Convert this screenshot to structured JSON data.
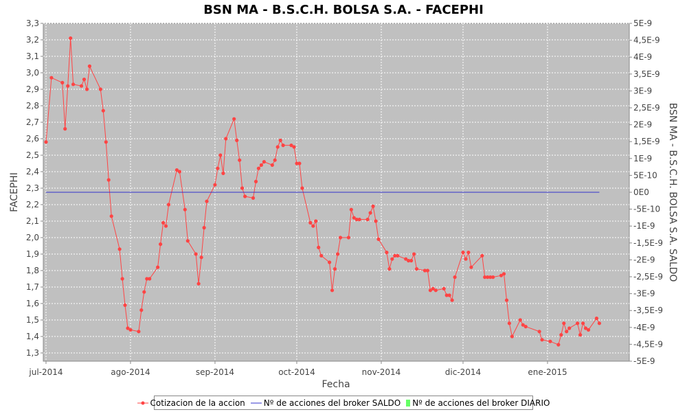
{
  "chart_data": {
    "type": "line",
    "title": "BSN MA - B.S.C.H. BOLSA S.A. - FACEPHI",
    "xlabel": "Fecha",
    "ylabel": "FACEPHI",
    "y2label": "BSN MA - B.S.C.H. BOLSA S.A. SALDO",
    "x_range": [
      "2014-06-30",
      "2015-01-31"
    ],
    "ylim": [
      1.25,
      3.3
    ],
    "y2lim": [
      -5e-09,
      5e-09
    ],
    "x_ticks": [
      {
        "date": "2014-07-01",
        "label": "jul-2014"
      },
      {
        "date": "2014-08-01",
        "label": "ago-2014"
      },
      {
        "date": "2014-09-01",
        "label": "sep-2014"
      },
      {
        "date": "2014-10-01",
        "label": "oct-2014"
      },
      {
        "date": "2014-11-01",
        "label": "nov-2014"
      },
      {
        "date": "2014-12-01",
        "label": "dic-2014"
      },
      {
        "date": "2015-01-01",
        "label": "ene-2015"
      }
    ],
    "y_ticks": [
      "1,3",
      "1,4",
      "1,5",
      "1,6",
      "1,7",
      "1,8",
      "1,9",
      "2,0",
      "2,1",
      "2,2",
      "2,3",
      "2,4",
      "2,5",
      "2,6",
      "2,7",
      "2,8",
      "2,9",
      "3,0",
      "3,1",
      "3,2",
      "3,3"
    ],
    "y_tick_values": [
      1.3,
      1.4,
      1.5,
      1.6,
      1.7,
      1.8,
      1.9,
      2.0,
      2.1,
      2.2,
      2.3,
      2.4,
      2.5,
      2.6,
      2.7,
      2.8,
      2.9,
      3.0,
      3.1,
      3.2,
      3.3
    ],
    "y2_ticks": [
      "5E-9",
      "4,5E-9",
      "4E-9",
      "3,5E-9",
      "3E-9",
      "2,5E-9",
      "2E-9",
      "1,5E-9",
      "1E-9",
      "5E-10",
      "0E0",
      "-5E-10",
      "-1E-9",
      "-1,5E-9",
      "-2E-9",
      "-2,5E-9",
      "-3E-9",
      "-3,5E-9",
      "-4E-9",
      "-4,5E-9",
      "-5E-9"
    ],
    "y2_tick_values": [
      5e-09,
      4.5e-09,
      4e-09,
      3.5e-09,
      3e-09,
      2.5e-09,
      2e-09,
      1.5e-09,
      1e-09,
      5e-10,
      0,
      -5e-10,
      -1e-09,
      -1.5e-09,
      -2e-09,
      -2.5e-09,
      -3e-09,
      -3.5e-09,
      -4e-09,
      -4.5e-09,
      -5e-09
    ],
    "grid": true,
    "legend_position": "bottom",
    "series": [
      {
        "name": "Cotizacion de la accion",
        "axis": "left",
        "color": "#ff4444",
        "points": [
          [
            "2014-07-01",
            2.58
          ],
          [
            "2014-07-03",
            2.97
          ],
          [
            "2014-07-07",
            2.94
          ],
          [
            "2014-07-08",
            2.66
          ],
          [
            "2014-07-09",
            2.92
          ],
          [
            "2014-07-10",
            3.21
          ],
          [
            "2014-07-11",
            2.93
          ],
          [
            "2014-07-14",
            2.92
          ],
          [
            "2014-07-15",
            2.96
          ],
          [
            "2014-07-16",
            2.9
          ],
          [
            "2014-07-17",
            3.04
          ],
          [
            "2014-07-21",
            2.9
          ],
          [
            "2014-07-22",
            2.77
          ],
          [
            "2014-07-23",
            2.58
          ],
          [
            "2014-07-24",
            2.35
          ],
          [
            "2014-07-25",
            2.13
          ],
          [
            "2014-07-28",
            1.93
          ],
          [
            "2014-07-29",
            1.75
          ],
          [
            "2014-07-30",
            1.59
          ],
          [
            "2014-07-31",
            1.45
          ],
          [
            "2014-08-01",
            1.44
          ],
          [
            "2014-08-04",
            1.43
          ],
          [
            "2014-08-05",
            1.56
          ],
          [
            "2014-08-06",
            1.67
          ],
          [
            "2014-08-07",
            1.75
          ],
          [
            "2014-08-08",
            1.75
          ],
          [
            "2014-08-11",
            1.82
          ],
          [
            "2014-08-12",
            1.96
          ],
          [
            "2014-08-13",
            2.09
          ],
          [
            "2014-08-14",
            2.07
          ],
          [
            "2014-08-15",
            2.2
          ],
          [
            "2014-08-18",
            2.41
          ],
          [
            "2014-08-19",
            2.4
          ],
          [
            "2014-08-21",
            2.17
          ],
          [
            "2014-08-22",
            1.98
          ],
          [
            "2014-08-25",
            1.9
          ],
          [
            "2014-08-26",
            1.72
          ],
          [
            "2014-08-27",
            1.88
          ],
          [
            "2014-08-28",
            2.06
          ],
          [
            "2014-08-29",
            2.22
          ],
          [
            "2014-09-01",
            2.32
          ],
          [
            "2014-09-02",
            2.42
          ],
          [
            "2014-09-03",
            2.5
          ],
          [
            "2014-09-04",
            2.39
          ],
          [
            "2014-09-05",
            2.6
          ],
          [
            "2014-09-08",
            2.72
          ],
          [
            "2014-09-09",
            2.59
          ],
          [
            "2014-09-10",
            2.47
          ],
          [
            "2014-09-11",
            2.3
          ],
          [
            "2014-09-12",
            2.25
          ],
          [
            "2014-09-15",
            2.24
          ],
          [
            "2014-09-16",
            2.34
          ],
          [
            "2014-09-17",
            2.42
          ],
          [
            "2014-09-18",
            2.44
          ],
          [
            "2014-09-19",
            2.46
          ],
          [
            "2014-09-22",
            2.44
          ],
          [
            "2014-09-23",
            2.47
          ],
          [
            "2014-09-24",
            2.55
          ],
          [
            "2014-09-25",
            2.59
          ],
          [
            "2014-09-26",
            2.56
          ],
          [
            "2014-09-29",
            2.56
          ],
          [
            "2014-09-30",
            2.55
          ],
          [
            "2014-10-01",
            2.45
          ],
          [
            "2014-10-02",
            2.45
          ],
          [
            "2014-10-03",
            2.3
          ],
          [
            "2014-10-06",
            2.09
          ],
          [
            "2014-10-07",
            2.07
          ],
          [
            "2014-10-08",
            2.1
          ],
          [
            "2014-10-09",
            1.94
          ],
          [
            "2014-10-10",
            1.89
          ],
          [
            "2014-10-13",
            1.85
          ],
          [
            "2014-10-14",
            1.68
          ],
          [
            "2014-10-15",
            1.81
          ],
          [
            "2014-10-16",
            1.9
          ],
          [
            "2014-10-17",
            2.0
          ],
          [
            "2014-10-20",
            2.0
          ],
          [
            "2014-10-21",
            2.17
          ],
          [
            "2014-10-22",
            2.12
          ],
          [
            "2014-10-23",
            2.11
          ],
          [
            "2014-10-24",
            2.11
          ],
          [
            "2014-10-27",
            2.11
          ],
          [
            "2014-10-28",
            2.15
          ],
          [
            "2014-10-29",
            2.19
          ],
          [
            "2014-10-30",
            2.1
          ],
          [
            "2014-10-31",
            1.99
          ],
          [
            "2014-11-03",
            1.91
          ],
          [
            "2014-11-04",
            1.81
          ],
          [
            "2014-11-05",
            1.87
          ],
          [
            "2014-11-06",
            1.89
          ],
          [
            "2014-11-07",
            1.89
          ],
          [
            "2014-11-10",
            1.87
          ],
          [
            "2014-11-11",
            1.86
          ],
          [
            "2014-11-12",
            1.86
          ],
          [
            "2014-11-13",
            1.9
          ],
          [
            "2014-11-14",
            1.81
          ],
          [
            "2014-11-17",
            1.8
          ],
          [
            "2014-11-18",
            1.8
          ],
          [
            "2014-11-19",
            1.68
          ],
          [
            "2014-11-20",
            1.69
          ],
          [
            "2014-11-21",
            1.68
          ],
          [
            "2014-11-24",
            1.69
          ],
          [
            "2014-11-25",
            1.65
          ],
          [
            "2014-11-26",
            1.65
          ],
          [
            "2014-11-27",
            1.62
          ],
          [
            "2014-11-28",
            1.76
          ],
          [
            "2014-12-01",
            1.91
          ],
          [
            "2014-12-02",
            1.87
          ],
          [
            "2014-12-03",
            1.91
          ],
          [
            "2014-12-04",
            1.82
          ],
          [
            "2014-12-08",
            1.89
          ],
          [
            "2014-12-09",
            1.76
          ],
          [
            "2014-12-10",
            1.76
          ],
          [
            "2014-12-11",
            1.76
          ],
          [
            "2014-12-12",
            1.76
          ],
          [
            "2014-12-15",
            1.77
          ],
          [
            "2014-12-16",
            1.78
          ],
          [
            "2014-12-17",
            1.62
          ],
          [
            "2014-12-18",
            1.48
          ],
          [
            "2014-12-19",
            1.4
          ],
          [
            "2014-12-22",
            1.5
          ],
          [
            "2014-12-23",
            1.47
          ],
          [
            "2014-12-24",
            1.46
          ],
          [
            "2014-12-29",
            1.43
          ],
          [
            "2014-12-30",
            1.38
          ],
          [
            "2015-01-02",
            1.37
          ],
          [
            "2015-01-05",
            1.35
          ],
          [
            "2015-01-06",
            1.41
          ],
          [
            "2015-01-07",
            1.48
          ],
          [
            "2015-01-08",
            1.43
          ],
          [
            "2015-01-09",
            1.45
          ],
          [
            "2015-01-12",
            1.48
          ],
          [
            "2015-01-13",
            1.41
          ],
          [
            "2015-01-14",
            1.48
          ],
          [
            "2015-01-15",
            1.45
          ],
          [
            "2015-01-16",
            1.44
          ],
          [
            "2015-01-19",
            1.51
          ],
          [
            "2015-01-20",
            1.48
          ]
        ]
      },
      {
        "name": "Nº de acciones del broker SALDO",
        "axis": "right",
        "color": "#3333cc",
        "points": [
          [
            "2014-07-01",
            0
          ],
          [
            "2015-01-20",
            0
          ]
        ]
      },
      {
        "name": "Nº de acciones del broker DIARIO",
        "axis": "right",
        "color": "#66ff66",
        "points": []
      }
    ]
  }
}
